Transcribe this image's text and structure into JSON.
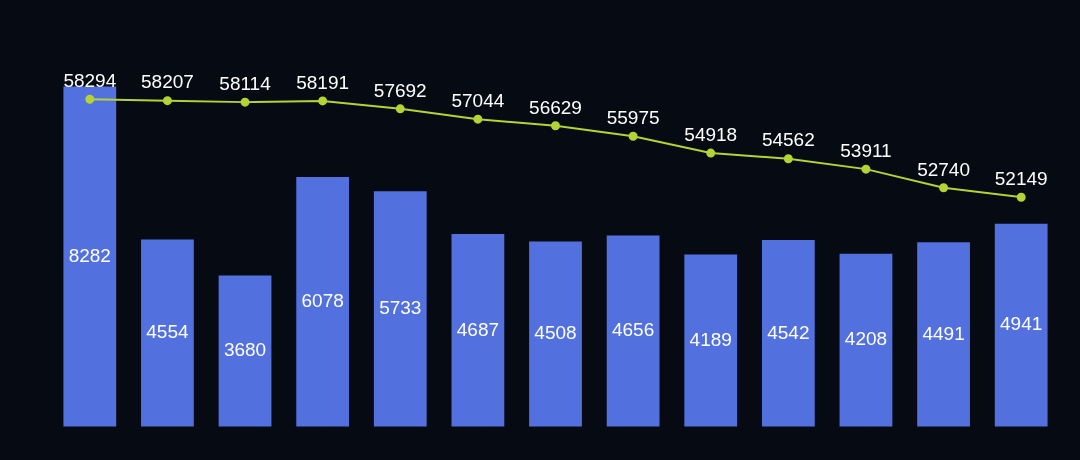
{
  "chart_data": [
    {
      "type": "bar",
      "categories": [
        null,
        null,
        null,
        null,
        null,
        null,
        null,
        null,
        null,
        null,
        null,
        null,
        null
      ],
      "color": "#5271de",
      "values": [
        8282,
        4554,
        3680,
        6078,
        5733,
        4687,
        4508,
        4656,
        4189,
        4542,
        4208,
        4491,
        4941
      ],
      "data_labels": true
    },
    {
      "type": "line",
      "categories": [
        null,
        null,
        null,
        null,
        null,
        null,
        null,
        null,
        null,
        null,
        null,
        null,
        null
      ],
      "color": "#b5d334",
      "marker": "circle",
      "values": [
        58294,
        58207,
        58114,
        58191,
        57692,
        57044,
        56629,
        55975,
        54918,
        54562,
        53911,
        52740,
        52149
      ],
      "data_labels": true
    }
  ]
}
